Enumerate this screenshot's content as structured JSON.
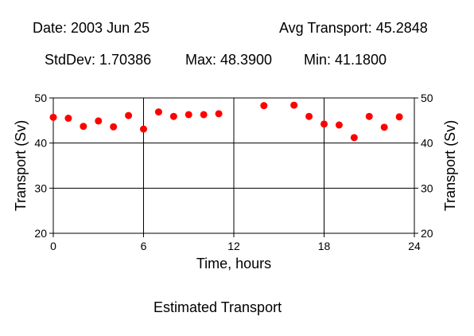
{
  "header": {
    "date": "Date: 2003 Jun 25",
    "avg": "Avg Transport: 45.2848",
    "stddev": "StdDev: 1.70386",
    "max": "Max: 48.3900",
    "min": "Min: 41.1800"
  },
  "footer": {
    "caption": "Estimated Transport"
  },
  "chart_data": {
    "type": "scatter",
    "xlabel": "Time, hours",
    "ylabel": "Transport (Sv)",
    "xlim": [
      0,
      24
    ],
    "ylim": [
      20,
      50
    ],
    "xticks": [
      0,
      6,
      12,
      18,
      24
    ],
    "yticks": [
      20,
      30,
      40,
      50
    ],
    "grid": true,
    "marker_color": "#ff0000",
    "series": [
      {
        "x": [
          0,
          1,
          2,
          3,
          4,
          5,
          6,
          7,
          8,
          9,
          10,
          11,
          14,
          16,
          17,
          18,
          19,
          20,
          21,
          22,
          23
        ],
        "y": [
          45.7,
          45.5,
          43.7,
          44.9,
          43.6,
          46.1,
          43.1,
          46.9,
          45.9,
          46.3,
          46.3,
          46.5,
          48.3,
          48.4,
          45.9,
          44.2,
          44.0,
          41.2,
          45.9,
          43.5,
          45.8
        ]
      }
    ]
  }
}
